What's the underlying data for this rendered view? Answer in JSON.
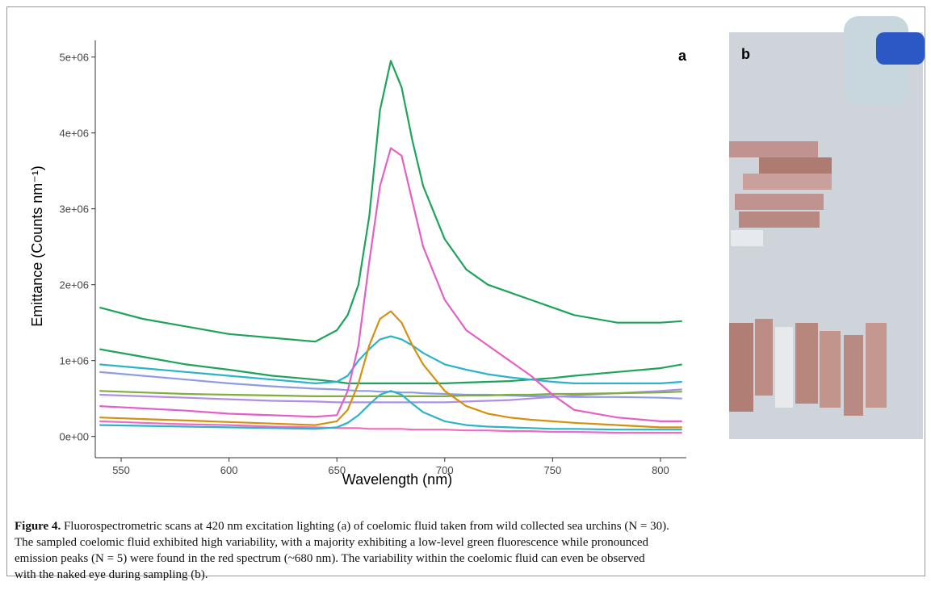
{
  "chart_data": {
    "type": "line",
    "xlabel": "Wavelength (nm)",
    "ylabel": "Emittance (Counts nm⁻¹)",
    "annotation": "a",
    "x": [
      540,
      560,
      580,
      600,
      620,
      640,
      650,
      655,
      660,
      665,
      670,
      675,
      680,
      685,
      690,
      700,
      710,
      720,
      730,
      740,
      750,
      760,
      780,
      800,
      810
    ],
    "xlim": [
      538,
      812
    ],
    "xticks": [
      550,
      600,
      650,
      700,
      750,
      800
    ],
    "ylim": [
      -280000,
      5220000
    ],
    "yticks": [
      {
        "value": 0,
        "label": "0e+00"
      },
      {
        "value": 1000000,
        "label": "1e+06"
      },
      {
        "value": 2000000,
        "label": "2e+06"
      },
      {
        "value": 3000000,
        "label": "3e+06"
      },
      {
        "value": 4000000,
        "label": "4e+06"
      },
      {
        "value": 5000000,
        "label": "5e+06"
      }
    ],
    "series": [
      {
        "color": "#8f9be3",
        "values": [
          850000.0,
          800000.0,
          750000.0,
          700000.0,
          660000.0,
          630000.0,
          620000.0,
          610000.0,
          600000.0,
          600000.0,
          590000.0,
          590000.0,
          580000.0,
          580000.0,
          570000.0,
          560000.0,
          550000.0,
          550000.0,
          540000.0,
          530000.0,
          530000.0,
          520000.0,
          520000.0,
          510000.0,
          500000.0
        ]
      },
      {
        "color": "#b18ee6",
        "values": [
          550000.0,
          530000.0,
          510000.0,
          490000.0,
          470000.0,
          460000.0,
          450000.0,
          450000.0,
          450000.0,
          450000.0,
          450000.0,
          450000.0,
          450000.0,
          450000.0,
          450000.0,
          450000.0,
          460000.0,
          470000.0,
          480000.0,
          500000.0,
          520000.0,
          540000.0,
          570000.0,
          600000.0,
          620000.0
        ]
      },
      {
        "color": "#7fae3a",
        "values": [
          600000.0,
          580000.0,
          560000.0,
          550000.0,
          540000.0,
          530000.0,
          530000.0,
          530000.0,
          530000.0,
          530000.0,
          530000.0,
          530000.0,
          530000.0,
          530000.0,
          530000.0,
          530000.0,
          540000.0,
          540000.0,
          550000.0,
          550000.0,
          560000.0,
          560000.0,
          570000.0,
          580000.0,
          590000.0
        ]
      },
      {
        "color": "#f06ac0",
        "values": [
          200000.0,
          180000.0,
          160000.0,
          150000.0,
          130000.0,
          120000.0,
          110000.0,
          110000.0,
          110000.0,
          100000.0,
          100000.0,
          100000.0,
          100000.0,
          90000.0,
          90000.0,
          90000.0,
          80000.0,
          80000.0,
          70000.0,
          70000.0,
          60000.0,
          60000.0,
          50000.0,
          50000.0,
          50000.0
        ]
      },
      {
        "color": "#2ab3c9",
        "values": [
          150000.0,
          140000.0,
          130000.0,
          120000.0,
          110000.0,
          100000.0,
          120000.0,
          180000.0,
          280000.0,
          420000.0,
          550000.0,
          600000.0,
          550000.0,
          430000.0,
          320000.0,
          200000.0,
          150000.0,
          130000.0,
          120000.0,
          110000.0,
          100000.0,
          100000.0,
          90000.0,
          90000.0,
          90000.0
        ]
      },
      {
        "color": "#1ea35c",
        "values": [
          1150000.0,
          1050000.0,
          950000.0,
          880000.0,
          800000.0,
          750000.0,
          720000.0,
          700000.0,
          700000.0,
          700000.0,
          700000.0,
          700000.0,
          700000.0,
          700000.0,
          700000.0,
          700000.0,
          710000.0,
          720000.0,
          730000.0,
          750000.0,
          770000.0,
          800000.0,
          850000.0,
          900000.0,
          950000.0
        ]
      },
      {
        "color": "#2ab3c9",
        "values": [
          950000.0,
          900000.0,
          850000.0,
          800000.0,
          750000.0,
          700000.0,
          720000.0,
          800000.0,
          1000000.0,
          1150000.0,
          1280000.0,
          1320000.0,
          1280000.0,
          1200000.0,
          1100000.0,
          950000.0,
          880000.0,
          820000.0,
          780000.0,
          750000.0,
          720000.0,
          700000.0,
          700000.0,
          700000.0,
          720000.0
        ]
      },
      {
        "color": "#d4900f",
        "values": [
          250000.0,
          230000.0,
          210000.0,
          190000.0,
          170000.0,
          150000.0,
          200000.0,
          350000.0,
          700000.0,
          1200000.0,
          1550000.0,
          1650000.0,
          1500000.0,
          1200000.0,
          950000.0,
          600000.0,
          400000.0,
          300000.0,
          250000.0,
          220000.0,
          200000.0,
          180000.0,
          150000.0,
          120000.0,
          120000.0
        ]
      },
      {
        "color": "#e45fc6",
        "values": [
          400000.0,
          370000.0,
          340000.0,
          300000.0,
          280000.0,
          260000.0,
          280000.0,
          600000.0,
          1200000.0,
          2300000.0,
          3300000.0,
          3800000.0,
          3700000.0,
          3100000.0,
          2500000.0,
          1800000.0,
          1400000.0,
          1200000.0,
          1000000.0,
          800000.0,
          550000.0,
          350000.0,
          250000.0,
          200000.0,
          200000.0
        ]
      },
      {
        "color": "#1ea35c",
        "values": [
          1700000.0,
          1550000.0,
          1450000.0,
          1350000.0,
          1300000.0,
          1250000.0,
          1400000.0,
          1600000.0,
          2000000.0,
          2900000.0,
          4300000.0,
          4950000.0,
          4600000.0,
          3900000.0,
          3300000.0,
          2600000.0,
          2200000.0,
          2000000.0,
          1900000.0,
          1800000.0,
          1700000.0,
          1600000.0,
          1500000.0,
          1500000.0,
          1520000.0
        ]
      }
    ]
  },
  "photo": {
    "label": "b"
  },
  "caption": {
    "label": "Figure 4.",
    "lines": [
      " Fluorospectrometric scans at 420 nm excitation lighting (a) of coelomic fluid taken from wild collected sea urchins (N = 30).",
      "The sampled coelomic fluid exhibited high variability, with a majority exhibiting a low-level green fluorescence while pronounced",
      "emission peaks (N = 5) were found in the red spectrum (~680 nm). The variability within the coelomic fluid can even be observed",
      "with the naked eye during sampling (b)."
    ]
  }
}
